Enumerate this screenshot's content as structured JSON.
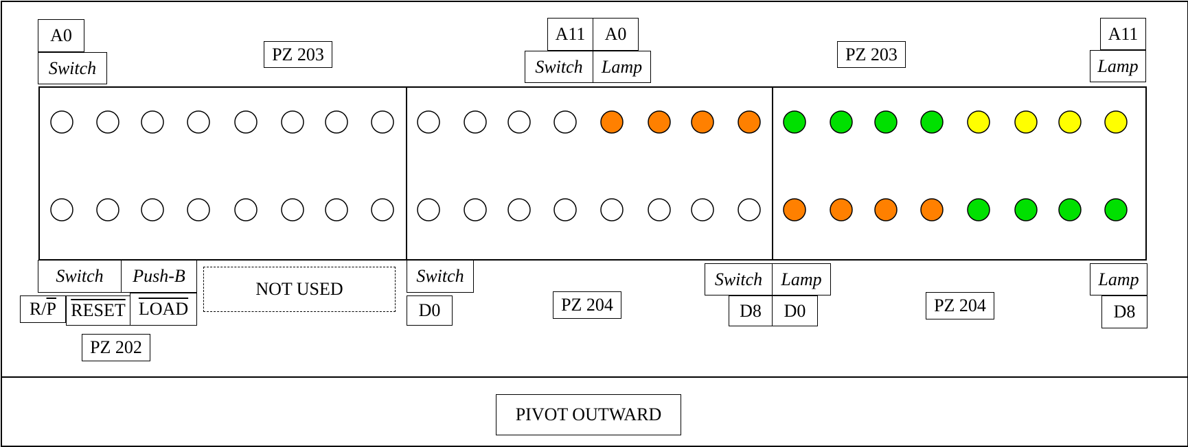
{
  "colors": {
    "white": "#ffffff",
    "orange": "#ff8000",
    "green": "#00e000",
    "yellow": "#ffff00",
    "stroke": "#000000"
  },
  "labels": {
    "top_left_a0": "A0",
    "top_left_switch": "Switch",
    "top_left_pz": "PZ 203",
    "top_mid_a11": "A11",
    "top_mid_a0": "A0",
    "top_mid_switch": "Switch",
    "top_mid_lamp": "Lamp",
    "top_right_pz": "PZ 203",
    "top_right_a11": "A11",
    "top_right_lamp": "Lamp",
    "bot_switch": "Switch",
    "bot_pushb": "Push-B",
    "bot_not_used": "NOT USED",
    "bot_r": "R/",
    "bot_p": "P",
    "bot_reset": "RESET",
    "bot_load": "LOAD",
    "bot_pz202": "PZ 202",
    "bot_mid_switch": "Switch",
    "bot_mid_d0": "D0",
    "bot_mid_pz": "PZ 204",
    "bot_mr_switch": "Switch",
    "bot_mr_lamp": "Lamp",
    "bot_mr_d8": "D8",
    "bot_mr_d0": "D0",
    "bot_right_pz": "PZ 204",
    "bot_right_lamp": "Lamp",
    "bot_right_d8": "D8",
    "pivot": "PIVOT OUTWARD"
  },
  "rows": [
    [
      "white",
      "white",
      "white",
      "white",
      "white",
      "white",
      "white",
      "white",
      "white",
      "white",
      "white",
      "white",
      "orange",
      "orange",
      "orange",
      "orange",
      "green",
      "green",
      "green",
      "green",
      "yellow",
      "yellow",
      "yellow",
      "yellow"
    ],
    [
      "white",
      "white",
      "white",
      "white",
      "white",
      "white",
      "white",
      "white",
      "white",
      "white",
      "white",
      "white",
      "white",
      "white",
      "white",
      "white",
      "orange",
      "orange",
      "orange",
      "orange",
      "green",
      "green",
      "green",
      "green"
    ]
  ]
}
